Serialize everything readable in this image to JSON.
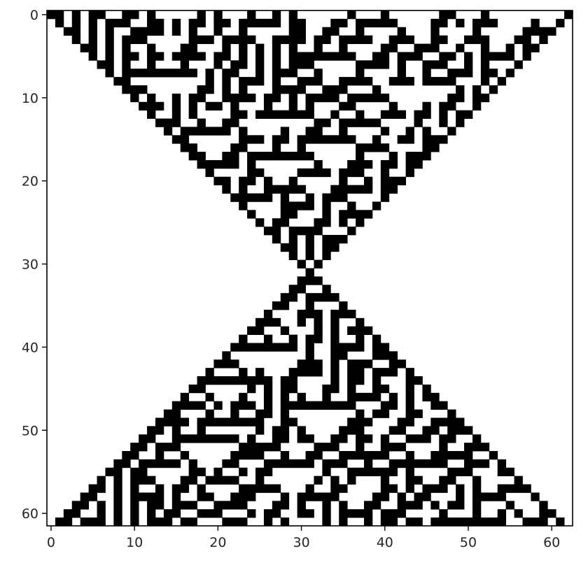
{
  "chart_data": {
    "type": "heatmap",
    "title": "",
    "xlabel": "",
    "ylabel": "",
    "rows": 62,
    "cols": 63,
    "xlim": [
      -0.5,
      62.5
    ],
    "ylim": [
      61.5,
      -0.5
    ],
    "y_axis_inverted": true,
    "grid": false,
    "colormap": "binary",
    "values_meaning": "1 = black cell, 0 = white cell",
    "x_ticks": [
      0,
      10,
      20,
      30,
      40,
      50,
      60
    ],
    "y_ticks": [
      0,
      10,
      20,
      30,
      40,
      50,
      60
    ],
    "x_tick_labels": [
      "0",
      "10",
      "20",
      "30",
      "40",
      "50",
      "60"
    ],
    "y_tick_labels": [
      "0",
      "10",
      "20",
      "30",
      "40",
      "50",
      "60"
    ],
    "structure": "hourglass: two cellular-automaton-style triangles with a pseudo-random black/white interior, apex at row 31 near column 31",
    "edge_seed_top_row": "011111111111111111111111111111111111111111111111111111111111110",
    "colors": {
      "on": "#000000",
      "off": "#ffffff",
      "axis": "#000000",
      "text": "#262626"
    }
  }
}
